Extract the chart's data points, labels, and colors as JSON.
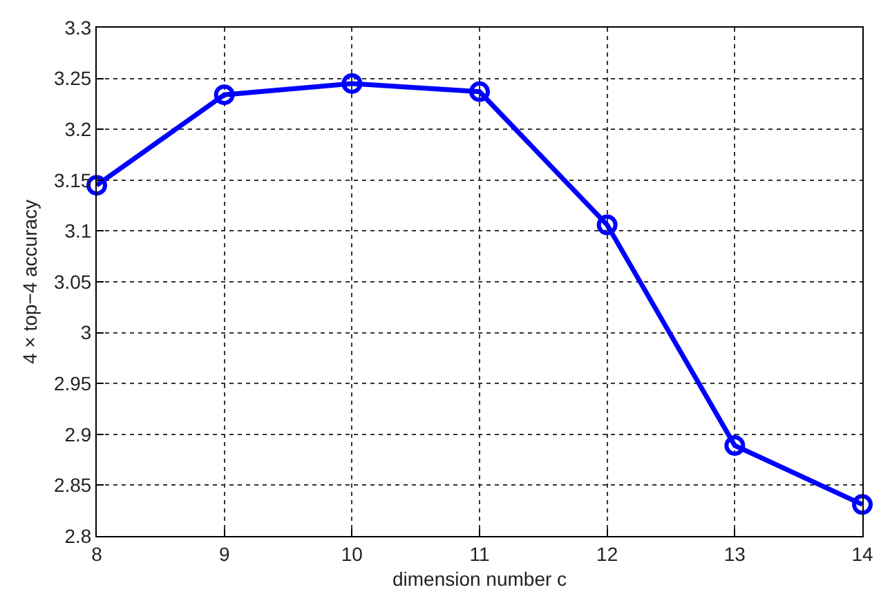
{
  "chart_data": {
    "type": "line",
    "xlabel": "dimension number c",
    "ylabel": "4 × top−4 accuracy",
    "x": [
      8,
      9,
      10,
      11,
      12,
      13,
      14
    ],
    "series": [
      {
        "color": "#0000ff",
        "values": [
          3.145,
          3.234,
          3.245,
          3.237,
          3.106,
          2.889,
          2.831
        ]
      }
    ],
    "xlim": [
      8,
      14
    ],
    "xticks": [
      8,
      9,
      10,
      11,
      12,
      13,
      14
    ],
    "ylim": [
      2.8,
      3.3
    ],
    "yticks": [
      2.8,
      2.85,
      2.9,
      2.95,
      3,
      3.05,
      3.1,
      3.15,
      3.2,
      3.25,
      3.3
    ],
    "grid": true,
    "marker": "circle",
    "line_style": "solid"
  }
}
